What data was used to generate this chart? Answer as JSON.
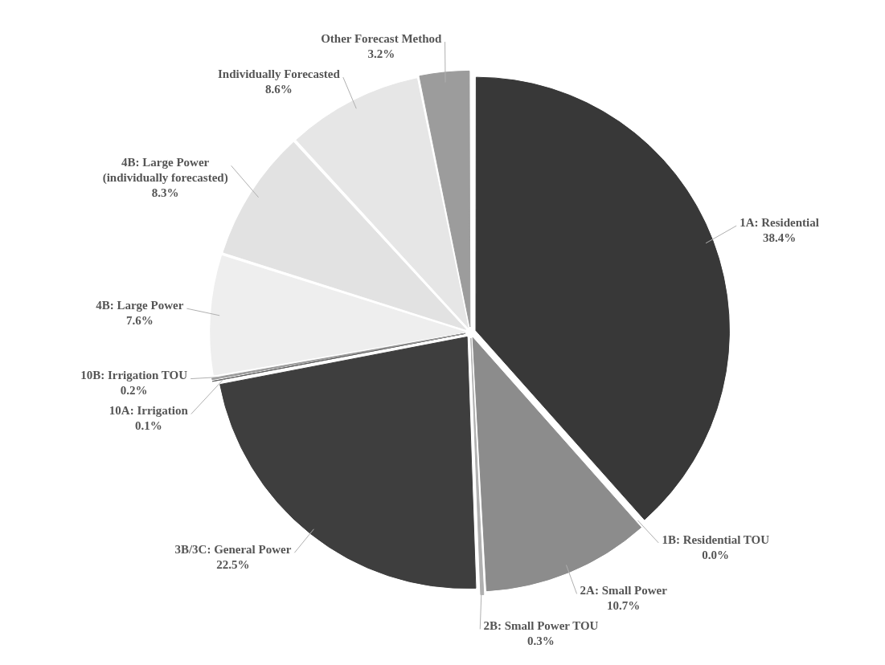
{
  "chart_data": {
    "type": "pie",
    "categories": [
      "1A: Residential",
      "1B: Residential TOU",
      "2A: Small Power",
      "2B: Small Power TOU",
      "3B/3C: General Power",
      "10A: Irrigation",
      "10B: Irrigation TOU",
      "4B: Large Power",
      "4B: Large Power (individually forecasted)",
      "Individually Forecasted",
      "Other Forecast Method"
    ],
    "values": [
      38.4,
      0.0,
      10.7,
      0.3,
      22.5,
      0.1,
      0.2,
      7.6,
      8.3,
      8.6,
      3.2
    ],
    "value_labels": [
      "38.4%",
      "0.0%",
      "10.7%",
      "0.3%",
      "22.5%",
      "0.1%",
      "0.2%",
      "7.6%",
      "8.3%",
      "8.6%",
      "3.2%"
    ],
    "colors": [
      "#383838",
      "#6a6a6a",
      "#8c8c8c",
      "#b0b0b0",
      "#3e3e3e",
      "#5a5a5a",
      "#9a9a9a",
      "#eeeeee",
      "#e2e2e2",
      "#e6e6e6",
      "#9c9c9c"
    ]
  }
}
